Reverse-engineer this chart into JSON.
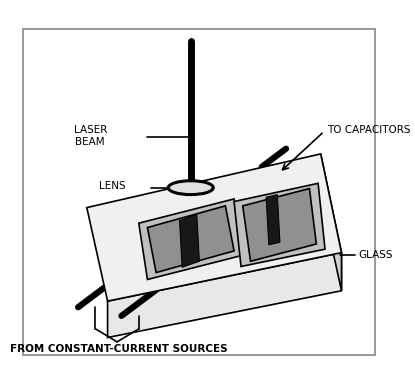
{
  "bg_color": "#ffffff",
  "border_color": "#888888",
  "line_color": "#000000",
  "figsize": [
    4.15,
    3.84
  ],
  "dpi": 100,
  "labels": {
    "laser_beam": "LASER\nBEAM",
    "lens": "LENS",
    "to_capacitors": "TO CAPACITORS",
    "glass": "GLASS",
    "from_sources": "FROM CONSTANT-CURRENT SOURCES"
  },
  "label_fontsize": 7.5
}
